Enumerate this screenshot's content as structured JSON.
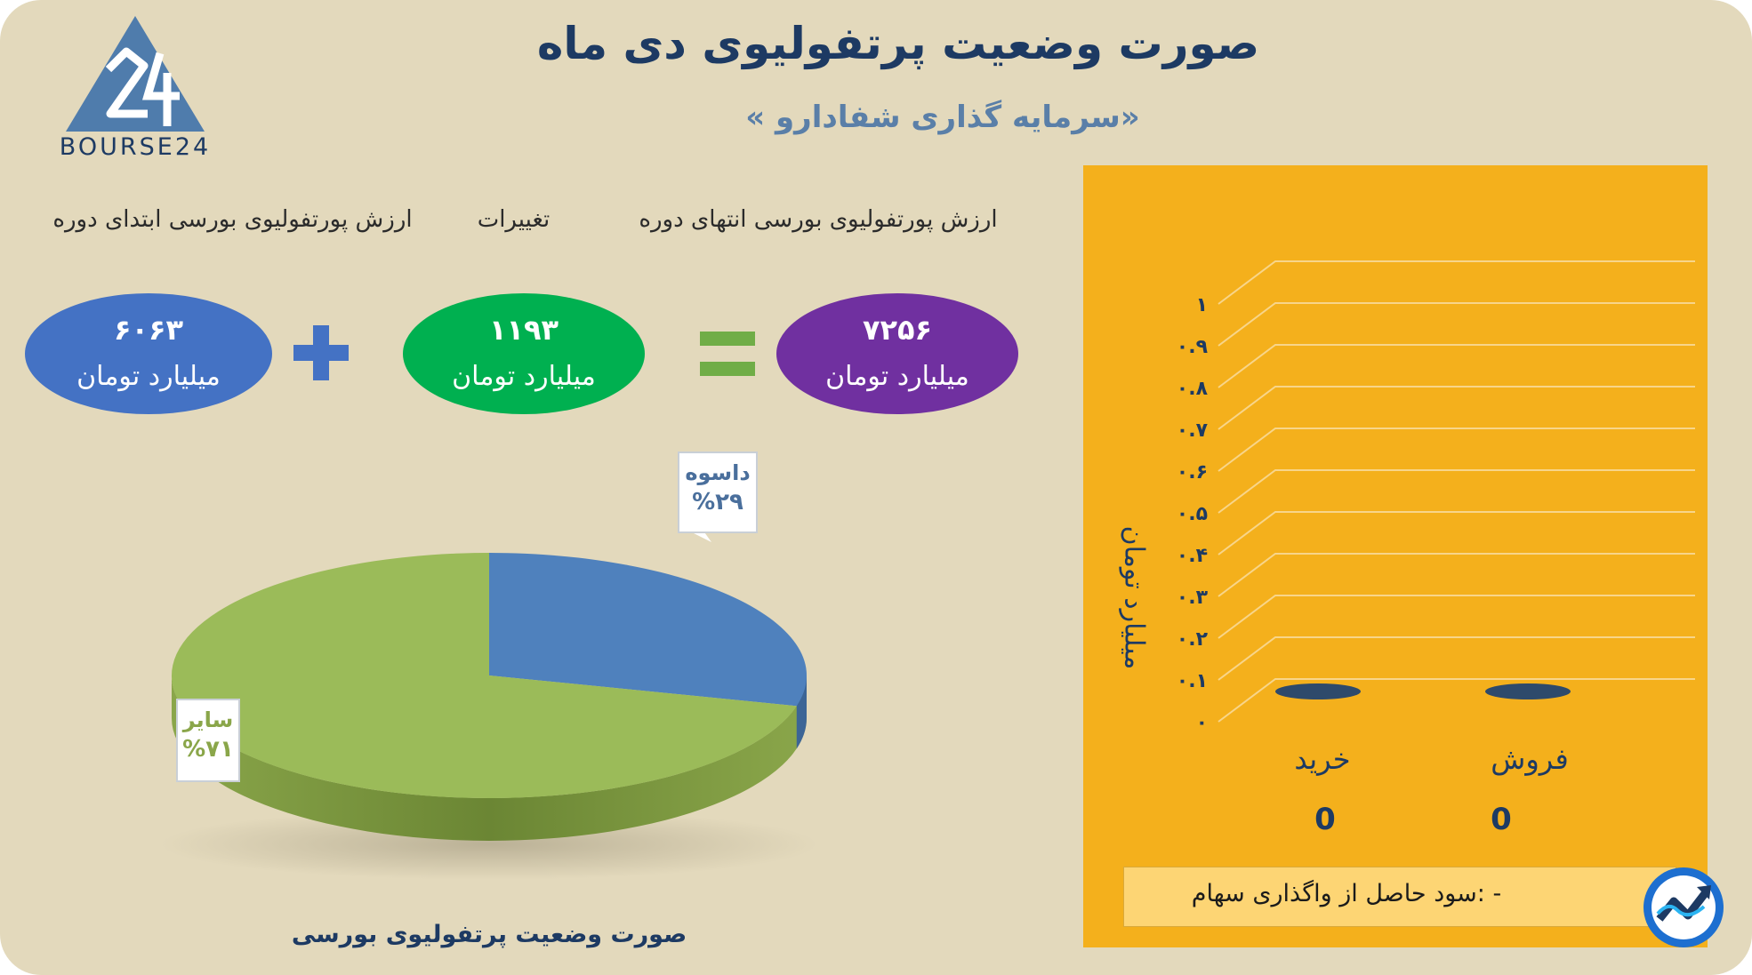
{
  "header": {
    "title": "صورت وضعیت پرتفولیوی دی ماه",
    "subtitle": "«سرمایه گذاری شفادارو »"
  },
  "logo": {
    "text": "BOURSE24",
    "mark": "24"
  },
  "equation": {
    "labels": {
      "start": "ارزش پورتفولیوی بورسی ابتدای دوره",
      "change": "تغییرات",
      "end": "ارزش پورتفولیوی بورسی انتهای دوره"
    },
    "start": {
      "value": "۶۰۶۳",
      "unit": "میلیارد تومان",
      "color": "#4472c4"
    },
    "change": {
      "value": "۱۱۹۳",
      "unit": "میلیارد تومان",
      "color": "#00b050"
    },
    "end": {
      "value": "۷۲۵۶",
      "unit": "میلیارد تومان",
      "color": "#7030a0"
    },
    "plus_color": "#4472c4",
    "equals_color": "#70ad47"
  },
  "chart_data": [
    {
      "type": "pie",
      "title": "صورت وضعیت پرتفولیوی بورسی",
      "slices": [
        {
          "label": "داسوه",
          "percent_label": "%۲۹",
          "value": 29,
          "color": "#4f81bd"
        },
        {
          "label": "سایر",
          "percent_label": "%۷۱",
          "value": 71,
          "color": "#9bbb59"
        }
      ]
    },
    {
      "type": "bar",
      "title": "",
      "ylabel": "میلیارد تومان",
      "categories": [
        "خرید",
        "فروش"
      ],
      "values": [
        0,
        0
      ],
      "value_labels": [
        "0",
        "0"
      ],
      "ylim": [
        0,
        1
      ],
      "yticks": [
        "۰",
        "۰.۱",
        "۰.۲",
        "۰.۳",
        "۰.۴",
        "۰.۵",
        "۰.۶",
        "۰.۷",
        "۰.۸",
        "۰.۹",
        "۱"
      ],
      "grid": true,
      "background": "#f4b01c",
      "bar_color": "#2e4a6b"
    }
  ],
  "profit": {
    "text": "- :سود حاصل از واگذاری سهام"
  },
  "colors": {
    "background": "#e3d9bc",
    "title": "#1d3a63",
    "panel": "#f4b01c"
  }
}
